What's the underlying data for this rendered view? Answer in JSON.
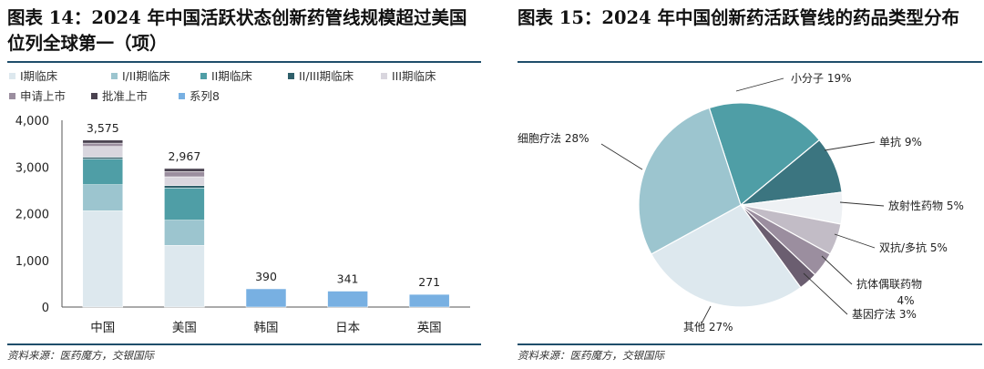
{
  "left": {
    "title": "图表 14：2024 年中国活跃状态创新药管线规模超过美国位列全球第一（项）",
    "source": "资料来源：医药魔方，交银国际",
    "chart_data": {
      "type": "bar",
      "stacked": true,
      "categories": [
        "中国",
        "美国",
        "韩国",
        "日本",
        "英国"
      ],
      "series": [
        {
          "name": "I期临床",
          "color": "#dde8ee",
          "values": [
            2060,
            1320,
            null,
            null,
            null
          ]
        },
        {
          "name": "I/II期临床",
          "color": "#9cc5cf",
          "values": [
            560,
            540,
            null,
            null,
            null
          ]
        },
        {
          "name": "II期临床",
          "color": "#4f9ea6",
          "values": [
            550,
            690,
            null,
            null,
            null
          ]
        },
        {
          "name": "II/III期临床",
          "color": "#2f5f6a",
          "values": [
            40,
            50,
            null,
            null,
            null
          ]
        },
        {
          "name": "III期临床",
          "color": "#d9d6de",
          "values": [
            230,
            190,
            null,
            null,
            null
          ]
        },
        {
          "name": "申请上市",
          "color": "#9b8e9f",
          "values": [
            70,
            110,
            null,
            null,
            null
          ]
        },
        {
          "name": "批准上市",
          "color": "#4a4250",
          "values": [
            65,
            67,
            null,
            null,
            null
          ]
        },
        {
          "name": "系列8",
          "color": "#78b0e2",
          "values": [
            null,
            null,
            390,
            341,
            271
          ]
        }
      ],
      "totals": [
        "3,575",
        "2,967",
        "390",
        "341",
        "271"
      ],
      "ylim": [
        0,
        4000
      ],
      "yticks": [
        "0",
        "1,000",
        "2,000",
        "3,000",
        "4,000"
      ],
      "grid": false,
      "legend_position": "top"
    }
  },
  "right": {
    "title": "图表 15：2024 年中国创新药活跃管线的药品类型分布",
    "source": "资料来源：医药魔方，交银国际",
    "chart_data": {
      "type": "pie",
      "labels": [
        "小分子",
        "单抗",
        "放射性药物",
        "双抗/多抗",
        "抗体偶联药物",
        "基因疗法",
        "其他",
        "细胞疗法"
      ],
      "values": [
        19,
        9,
        5,
        5,
        4,
        3,
        27,
        28
      ],
      "display_labels": [
        "小分子 19%",
        "单抗 9%",
        "放射性药物 5%",
        "双抗/多抗 5%",
        "抗体偶联药物",
        "基因疗法 3%",
        "其他 27%",
        "细胞疗法 28%"
      ],
      "extra_label": "4%",
      "colors": [
        "#4f9ea6",
        "#3b7580",
        "#eef1f4",
        "#c2bcc6",
        "#9b8e9f",
        "#6b5e70",
        "#dde8ee",
        "#9cc5cf"
      ]
    }
  }
}
